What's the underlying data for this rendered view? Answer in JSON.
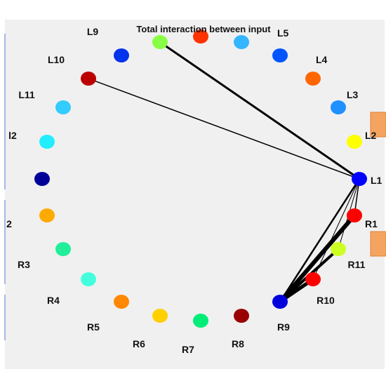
{
  "figure": {
    "title": "Total interaction between input",
    "background_color": "#f0f0f0",
    "edge_color": "#000000"
  },
  "nodes": [
    {
      "id": "L1",
      "label": "L1",
      "color": "#0000ff"
    },
    {
      "id": "L2",
      "label": "L2",
      "color": "#ffff00"
    },
    {
      "id": "L3",
      "label": "L3",
      "color": "#1e90ff"
    },
    {
      "id": "L4",
      "label": "L4",
      "color": "#ff6600"
    },
    {
      "id": "L5",
      "label": "L5",
      "color": "#0055ff"
    },
    {
      "id": "L6",
      "label": "",
      "color": "#33b5ff"
    },
    {
      "id": "L7",
      "label": "",
      "color": "#ff3300"
    },
    {
      "id": "L8",
      "label": "",
      "color": "#88ff44"
    },
    {
      "id": "L9",
      "label": "L9",
      "color": "#0033ee"
    },
    {
      "id": "L10",
      "label": "L10",
      "color": "#bb0000"
    },
    {
      "id": "L11",
      "label": "L11",
      "color": "#33ccff"
    },
    {
      "id": "L12",
      "label": "l2",
      "color": "#22eeff"
    },
    {
      "id": "L13",
      "label": "",
      "color": "#000099"
    },
    {
      "id": "R13",
      "label": "2",
      "color": "#ffaa00"
    },
    {
      "id": "R3",
      "label": "R3",
      "color": "#22ee99"
    },
    {
      "id": "R4",
      "label": "R4",
      "color": "#44ffdd"
    },
    {
      "id": "R5",
      "label": "R5",
      "color": "#ff8800"
    },
    {
      "id": "R6",
      "label": "R6",
      "color": "#ffd000"
    },
    {
      "id": "R7",
      "label": "R7",
      "color": "#00ee77"
    },
    {
      "id": "R8",
      "label": "R8",
      "color": "#990000"
    },
    {
      "id": "R9",
      "label": "R9",
      "color": "#0000dd"
    },
    {
      "id": "R10",
      "label": "R10",
      "color": "#ff0000"
    },
    {
      "id": "R11",
      "label": "R11",
      "color": "#ccff22"
    },
    {
      "id": "R12",
      "label": "R1",
      "color": "#ff0000"
    }
  ],
  "edges": [
    {
      "source": "L1",
      "target": "L8",
      "weight": 3
    },
    {
      "source": "L1",
      "target": "L10",
      "weight": 1.5
    },
    {
      "source": "L1",
      "target": "R12",
      "weight": 1.5
    },
    {
      "source": "L1",
      "target": "R11",
      "weight": 1
    },
    {
      "source": "L1",
      "target": "R9",
      "weight": 2.5
    },
    {
      "source": "L1",
      "target": "R10",
      "weight": 1
    },
    {
      "source": "R9",
      "target": "R12",
      "weight": 6
    },
    {
      "source": "R9",
      "target": "R11",
      "weight": 4
    },
    {
      "source": "R9",
      "target": "R10",
      "weight": 5
    }
  ]
}
